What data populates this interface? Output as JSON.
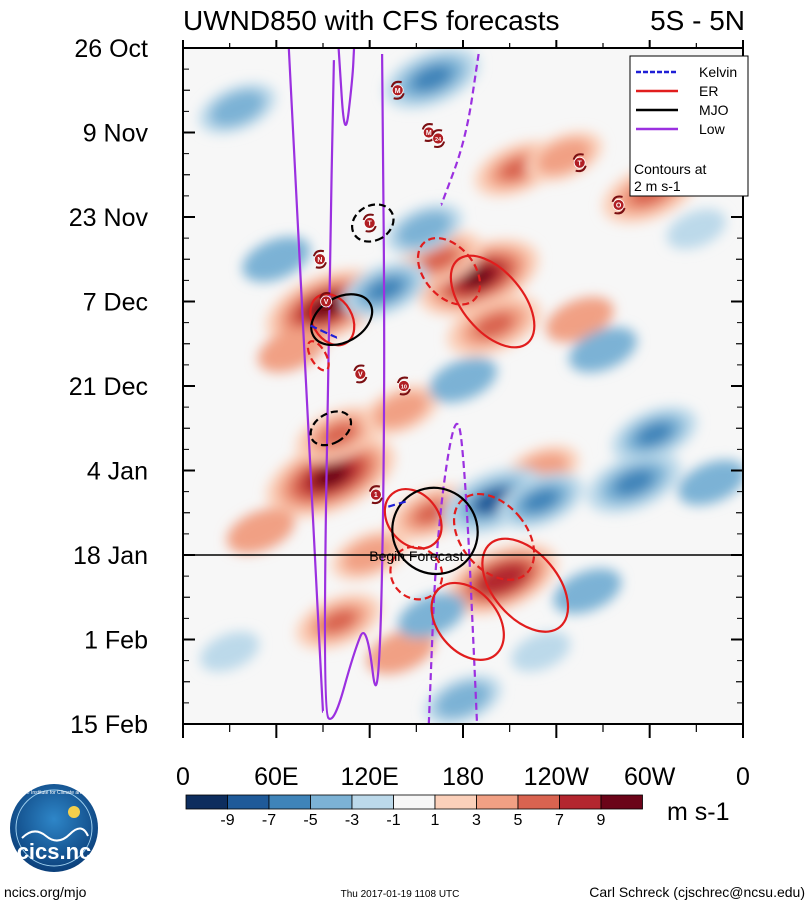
{
  "chart_data": {
    "type": "heatmap",
    "title": "UWND850 with CFS forecasts",
    "region": "5S - 5N",
    "y_ticks": [
      {
        "label": "26 Oct",
        "day": 0
      },
      {
        "label": "9 Nov",
        "day": 14
      },
      {
        "label": "23 Nov",
        "day": 28
      },
      {
        "label": "7 Dec",
        "day": 42
      },
      {
        "label": "21 Dec",
        "day": 56
      },
      {
        "label": "4 Jan",
        "day": 70
      },
      {
        "label": "18 Jan",
        "day": 84
      },
      {
        "label": "1 Feb",
        "day": 98
      },
      {
        "label": "15 Feb",
        "day": 112
      }
    ],
    "ylim_days": [
      0,
      112
    ],
    "x_ticks": [
      {
        "label": "0",
        "lon": 0
      },
      {
        "label": "60E",
        "lon": 60
      },
      {
        "label": "120E",
        "lon": 120
      },
      {
        "label": "180",
        "lon": 180
      },
      {
        "label": "120W",
        "lon": 240
      },
      {
        "label": "60W",
        "lon": 300
      },
      {
        "label": "0",
        "lon": 360
      }
    ],
    "xlim_lon": [
      0,
      360
    ],
    "forecast_start": {
      "label": "Begin Forecast",
      "day": 84
    },
    "colorbar": {
      "unit": "m s-1",
      "labels": [
        "-9",
        "-7",
        "-5",
        "-3",
        "-1",
        "1",
        "3",
        "5",
        "7",
        "9"
      ],
      "colors": [
        "#0d2d5e",
        "#1f5a99",
        "#3f84b9",
        "#7cb2d5",
        "#bcd9ea",
        "#f7f7f7",
        "#fbd0ba",
        "#f1a084",
        "#d96350",
        "#b3262f",
        "#6b0419"
      ]
    },
    "legend": {
      "items": [
        {
          "label": "Kelvin",
          "color": "#1f1fd6",
          "dashed": true
        },
        {
          "label": "ER",
          "color": "#e11d1d",
          "dashed": false
        },
        {
          "label": "MJO",
          "color": "#000000",
          "dashed": false
        },
        {
          "label": "Low",
          "color": "#9b30e0",
          "dashed": false
        }
      ],
      "note_line1": "Contours at",
      "note_line2": "2 m s-1",
      "placement": "top-right"
    },
    "storm_markers": [
      {
        "lon": 138,
        "day": 7,
        "label": "M"
      },
      {
        "lon": 158,
        "day": 14,
        "label": "M"
      },
      {
        "lon": 164,
        "day": 15,
        "label": "24"
      },
      {
        "lon": 255,
        "day": 19,
        "label": "T"
      },
      {
        "lon": 280,
        "day": 26,
        "label": "O"
      },
      {
        "lon": 120,
        "day": 29,
        "label": "T"
      },
      {
        "lon": 88,
        "day": 35,
        "label": "N"
      },
      {
        "lon": 92,
        "day": 42,
        "label": "V"
      },
      {
        "lon": 114,
        "day": 54,
        "label": "V"
      },
      {
        "lon": 142,
        "day": 56,
        "label": "10"
      },
      {
        "lon": 124,
        "day": 74,
        "label": "1"
      }
    ],
    "anomalies": [
      {
        "lon": 92,
        "day": 43,
        "value": 9
      },
      {
        "lon": 95,
        "day": 71,
        "value": 10
      },
      {
        "lon": 190,
        "day": 38,
        "value": 9
      },
      {
        "lon": 205,
        "day": 88,
        "value": 8
      },
      {
        "lon": 100,
        "day": 64,
        "value": 5
      },
      {
        "lon": 200,
        "day": 46,
        "value": 6
      },
      {
        "lon": 165,
        "day": 35,
        "value": 5
      },
      {
        "lon": 215,
        "day": 20,
        "value": 5
      },
      {
        "lon": 245,
        "day": 18,
        "value": 4
      },
      {
        "lon": 300,
        "day": 24,
        "value": 6
      },
      {
        "lon": 140,
        "day": 60,
        "value": 4
      },
      {
        "lon": 160,
        "day": 77,
        "value": 5
      },
      {
        "lon": 100,
        "day": 95,
        "value": 5
      },
      {
        "lon": 140,
        "day": 100,
        "value": 3
      },
      {
        "lon": 255,
        "day": 45,
        "value": 3
      },
      {
        "lon": 120,
        "day": 84,
        "value": 4
      },
      {
        "lon": 230,
        "day": 70,
        "value": 4
      },
      {
        "lon": 70,
        "day": 50,
        "value": 3
      },
      {
        "lon": 50,
        "day": 80,
        "value": 3
      },
      {
        "lon": 160,
        "day": 5,
        "value": -6
      },
      {
        "lon": 155,
        "day": 30,
        "value": -4
      },
      {
        "lon": 130,
        "day": 40,
        "value": -5
      },
      {
        "lon": 200,
        "day": 75,
        "value": -7
      },
      {
        "lon": 230,
        "day": 75,
        "value": -5
      },
      {
        "lon": 290,
        "day": 72,
        "value": -6
      },
      {
        "lon": 303,
        "day": 64,
        "value": -5
      },
      {
        "lon": 180,
        "day": 108,
        "value": -4
      },
      {
        "lon": 160,
        "day": 94,
        "value": -3
      },
      {
        "lon": 35,
        "day": 10,
        "value": -4
      },
      {
        "lon": 340,
        "day": 72,
        "value": -3
      },
      {
        "lon": 270,
        "day": 50,
        "value": -3
      },
      {
        "lon": 60,
        "day": 35,
        "value": -3
      },
      {
        "lon": 260,
        "day": 90,
        "value": -3
      },
      {
        "lon": 30,
        "day": 100,
        "value": -2
      },
      {
        "lon": 180,
        "day": 55,
        "value": -3
      },
      {
        "lon": 330,
        "day": 30,
        "value": -2
      },
      {
        "lon": 230,
        "day": 100,
        "value": -2
      }
    ],
    "contours": [
      {
        "wave": "Low",
        "color": "#9b30e0",
        "dashed": false,
        "points": [
          [
            97,
            2
          ],
          [
            94,
            40
          ],
          [
            90,
            110
          ],
          [
            97,
            112
          ],
          [
            110,
            100
          ],
          [
            118,
            95
          ],
          [
            126,
            112
          ],
          [
            130,
            60
          ],
          [
            128,
            1
          ]
        ]
      },
      {
        "wave": "Low",
        "color": "#9b30e0",
        "dashed": false,
        "points": [
          [
            68,
            0
          ],
          [
            72,
            20
          ],
          [
            75,
            35
          ],
          [
            90,
            110
          ]
        ]
      },
      {
        "wave": "Low",
        "color": "#9b30e0",
        "dashed": false,
        "points": [
          [
            100,
            0
          ],
          [
            104,
            16
          ],
          [
            109,
            5
          ],
          [
            110,
            0
          ]
        ]
      },
      {
        "wave": "Low",
        "color": "#9b30e0",
        "dashed": true,
        "points": [
          [
            190,
            1
          ],
          [
            182,
            15
          ],
          [
            166,
            26
          ]
        ]
      },
      {
        "wave": "Low",
        "color": "#9b30e0",
        "dashed": true,
        "points": [
          [
            158,
            112
          ],
          [
            163,
            80
          ],
          [
            176,
            58
          ],
          [
            182,
            72
          ],
          [
            189,
            112
          ]
        ]
      },
      {
        "wave": "ER",
        "color": "#e11d1d",
        "dashed": false,
        "ellipse": {
          "lon": 199,
          "day": 42,
          "rx": 12,
          "ry": 10,
          "angle": 40
        }
      },
      {
        "wave": "ER",
        "color": "#e11d1d",
        "dashed": true,
        "ellipse": {
          "lon": 171,
          "day": 37,
          "rx": 10,
          "ry": 7,
          "angle": 40
        }
      },
      {
        "wave": "ER",
        "color": "#e11d1d",
        "dashed": false,
        "ellipse": {
          "lon": 96,
          "day": 45,
          "rx": 8,
          "ry": 5,
          "angle": 30
        }
      },
      {
        "wave": "ER",
        "color": "#e11d1d",
        "dashed": true,
        "ellipse": {
          "lon": 87,
          "day": 51,
          "rx": 3,
          "ry": 3,
          "angle": 30
        }
      },
      {
        "wave": "ER",
        "color": "#e11d1d",
        "dashed": false,
        "ellipse": {
          "lon": 148,
          "day": 78,
          "rx": 10,
          "ry": 6,
          "angle": 40
        }
      },
      {
        "wave": "ER",
        "color": "#e11d1d",
        "dashed": true,
        "ellipse": {
          "lon": 200,
          "day": 81,
          "rx": 13,
          "ry": 9,
          "angle": 40
        }
      },
      {
        "wave": "ER",
        "color": "#e11d1d",
        "dashed": false,
        "ellipse": {
          "lon": 220,
          "day": 89,
          "rx": 13,
          "ry": 10,
          "angle": 40
        }
      },
      {
        "wave": "ER",
        "color": "#e11d1d",
        "dashed": false,
        "ellipse": {
          "lon": 183,
          "day": 95,
          "rx": 12,
          "ry": 8,
          "angle": 40
        }
      },
      {
        "wave": "ER",
        "color": "#e11d1d",
        "dashed": true,
        "ellipse": {
          "lon": 150,
          "day": 87,
          "rx": 10,
          "ry": 5,
          "angle": 40
        }
      },
      {
        "wave": "MJO",
        "color": "#000000",
        "dashed": false,
        "ellipse": {
          "lon": 102,
          "day": 45,
          "rx": 9,
          "ry": 6,
          "angle": -60
        }
      },
      {
        "wave": "MJO",
        "color": "#000000",
        "dashed": true,
        "ellipse": {
          "lon": 122,
          "day": 29,
          "rx": 7,
          "ry": 4,
          "angle": -60
        }
      },
      {
        "wave": "MJO",
        "color": "#000000",
        "dashed": true,
        "ellipse": {
          "lon": 95,
          "day": 63,
          "rx": 6,
          "ry": 4,
          "angle": -60
        }
      },
      {
        "wave": "MJO",
        "color": "#000000",
        "dashed": false,
        "ellipse": {
          "lon": 162,
          "day": 80,
          "rx": 17,
          "ry": 8,
          "angle": 35
        }
      },
      {
        "wave": "Kelvin",
        "color": "#1f1fd6",
        "dashed": true,
        "points": [
          [
            82,
            46
          ],
          [
            99,
            48
          ]
        ]
      },
      {
        "wave": "Kelvin",
        "color": "#1f1fd6",
        "dashed": true,
        "points": [
          [
            132,
            76
          ],
          [
            145,
            75
          ]
        ]
      }
    ]
  },
  "footer": {
    "logo_text": "cics.nc",
    "logo_ring_text": "Cooperative Institute for Climate and Satellites",
    "left": "ncics.org/mjo",
    "center": "Thu 2017-01-19 1108 UTC",
    "right": "Carl Schreck (cjschrec@ncsu.edu)"
  }
}
